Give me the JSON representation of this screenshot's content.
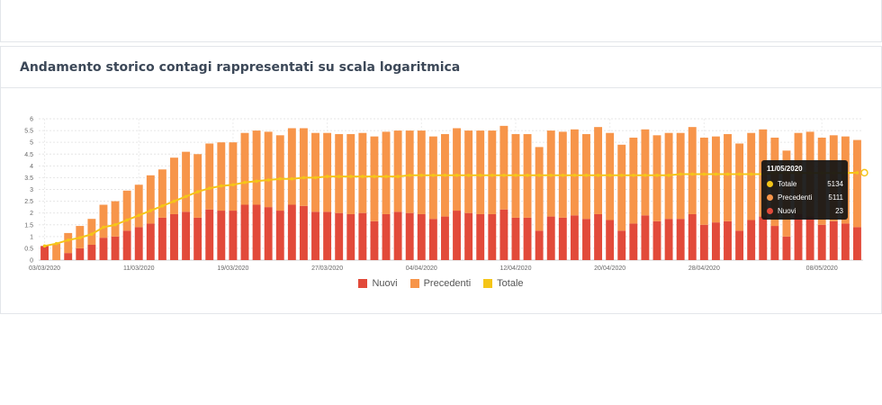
{
  "card": {
    "title": "Andamento storico contagi rappresentati su scala logaritmica"
  },
  "colors": {
    "nuovi": "#e24a3a",
    "precedenti": "#f7954a",
    "totale": "#f5c518"
  },
  "tooltip": {
    "date": "11/05/2020",
    "rows": [
      {
        "label": "Totale",
        "value": "5134",
        "color": "#f5c518"
      },
      {
        "label": "Precedenti",
        "value": "5111",
        "color": "#f7954a"
      },
      {
        "label": "Nuovi",
        "value": "23",
        "color": "#e24a3a"
      }
    ]
  },
  "chart_data": {
    "type": "bar",
    "stacked": true,
    "scale": "log10",
    "title": "Andamento storico contagi rappresentati su scala logaritmica",
    "ylim": [
      0,
      6
    ],
    "yticks": [
      0,
      0.5,
      1,
      1.5,
      2,
      2.5,
      3,
      3.5,
      4,
      4.5,
      5,
      5.5,
      6
    ],
    "x_tick_labels": [
      "03/03/2020",
      "11/03/2020",
      "19/03/2020",
      "27/03/2020",
      "04/04/2020",
      "12/04/2020",
      "20/04/2020",
      "28/04/2020",
      "08/05/2020"
    ],
    "x_tick_indices": [
      0,
      8,
      16,
      24,
      32,
      40,
      48,
      56,
      66
    ],
    "grid": true,
    "legend_position": "bottom",
    "series": [
      {
        "name": "Nuovi",
        "color": "#e24a3a",
        "values": [
          0.6,
          0,
          0.3,
          0.5,
          0.65,
          0.95,
          1.0,
          1.25,
          1.4,
          1.55,
          1.8,
          1.95,
          2.05,
          1.8,
          2.15,
          2.1,
          2.1,
          2.35,
          2.35,
          2.25,
          2.1,
          2.35,
          2.3,
          2.05,
          2.05,
          2.0,
          1.95,
          2.0,
          1.65,
          1.95,
          2.05,
          2.0,
          1.95,
          1.75,
          1.85,
          2.1,
          2.0,
          1.95,
          1.95,
          2.15,
          1.8,
          1.8,
          1.25,
          1.85,
          1.8,
          1.9,
          1.75,
          1.95,
          1.7,
          1.25,
          1.55,
          1.9,
          1.65,
          1.75,
          1.75,
          1.95,
          1.5,
          1.6,
          1.65,
          1.25,
          1.7,
          1.85,
          1.45,
          1.0,
          1.95,
          1.85,
          1.5,
          1.65,
          1.55,
          1.4
        ]
      },
      {
        "name": "Precedenti",
        "color": "#f7954a",
        "values": [
          0,
          0.7,
          0.85,
          0.95,
          1.1,
          1.4,
          1.5,
          1.7,
          1.8,
          2.05,
          2.05,
          2.4,
          2.55,
          2.7,
          2.8,
          2.9,
          2.9,
          3.05,
          3.15,
          3.2,
          3.2,
          3.25,
          3.3,
          3.35,
          3.35,
          3.35,
          3.4,
          3.4,
          3.6,
          3.5,
          3.45,
          3.5,
          3.55,
          3.5,
          3.5,
          3.5,
          3.5,
          3.55,
          3.55,
          3.55,
          3.55,
          3.55,
          3.55,
          3.65,
          3.65,
          3.65,
          3.6,
          3.7,
          3.7,
          3.65,
          3.65,
          3.65,
          3.65,
          3.65,
          3.65,
          3.7,
          3.7,
          3.65,
          3.7,
          3.7,
          3.7,
          3.7,
          3.75,
          3.65,
          3.45,
          3.6,
          3.7,
          3.65,
          3.7,
          3.7
        ]
      },
      {
        "name": "Totale",
        "color": "#f5c518",
        "type": "line",
        "values": [
          0.6,
          0.7,
          0.85,
          0.95,
          1.1,
          1.4,
          1.5,
          1.7,
          1.9,
          2.1,
          2.3,
          2.5,
          2.7,
          2.9,
          3.05,
          3.15,
          3.2,
          3.3,
          3.35,
          3.4,
          3.45,
          3.45,
          3.5,
          3.5,
          3.55,
          3.55,
          3.55,
          3.55,
          3.55,
          3.55,
          3.55,
          3.6,
          3.6,
          3.6,
          3.6,
          3.6,
          3.6,
          3.6,
          3.6,
          3.6,
          3.6,
          3.6,
          3.6,
          3.6,
          3.6,
          3.6,
          3.6,
          3.6,
          3.6,
          3.6,
          3.6,
          3.6,
          3.6,
          3.6,
          3.65,
          3.65,
          3.65,
          3.65,
          3.65,
          3.65,
          3.65,
          3.65,
          3.7,
          3.7,
          3.7,
          3.7,
          3.7,
          3.7,
          3.7,
          3.71
        ]
      }
    ]
  }
}
